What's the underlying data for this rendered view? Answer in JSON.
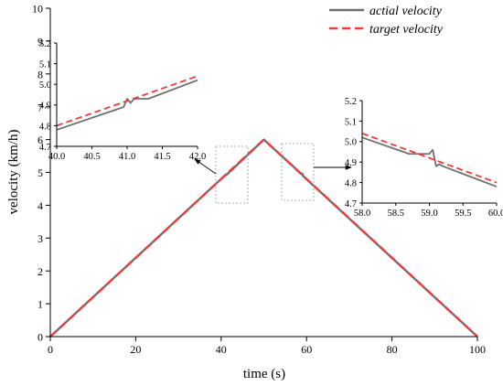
{
  "chart_data": [
    {
      "type": "line",
      "title": "",
      "xlabel": "time (s)",
      "ylabel": "velocity (km/h)",
      "xlim": [
        0,
        100
      ],
      "ylim": [
        0,
        10
      ],
      "xticks": [
        0,
        20,
        40,
        60,
        80,
        100
      ],
      "yticks": [
        0,
        1,
        2,
        3,
        4,
        5,
        6,
        7,
        8,
        9,
        10
      ],
      "grid": false,
      "legend": "top-right",
      "series": [
        {
          "name": "actial velocity",
          "color": "#707070",
          "style": "solid",
          "x": [
            0,
            41.0,
            41.1,
            41.3,
            50,
            59.0,
            59.1,
            59.2,
            100
          ],
          "y": [
            0,
            4.92,
            4.94,
            4.93,
            6.0,
            4.93,
            4.95,
            4.89,
            0
          ]
        },
        {
          "name": "target velocity",
          "color": "#ef3b3b",
          "style": "dashed",
          "x": [
            0,
            50,
            100
          ],
          "y": [
            0,
            6.0,
            0
          ]
        }
      ]
    },
    {
      "type": "line",
      "xlim": [
        40.0,
        42.0
      ],
      "ylim": [
        4.7,
        5.2
      ],
      "xticks": [
        "40.0",
        "40.5",
        "41.0",
        "41.5",
        "42.0"
      ],
      "yticks": [
        "4.7",
        "4.8",
        "4.9",
        "5.0",
        "5.1",
        "5.2"
      ],
      "series": [
        {
          "name": "actial velocity",
          "color": "#707070",
          "style": "solid",
          "x": [
            40.0,
            40.95,
            41.0,
            41.05,
            41.1,
            41.3,
            42.0
          ],
          "y": [
            4.78,
            4.89,
            4.93,
            4.91,
            4.93,
            4.93,
            5.02
          ]
        },
        {
          "name": "target velocity",
          "color": "#ef3b3b",
          "style": "dashed",
          "x": [
            40.0,
            42.0
          ],
          "y": [
            4.8,
            5.04
          ]
        }
      ]
    },
    {
      "type": "line",
      "xlim": [
        58.0,
        60.0
      ],
      "ylim": [
        4.7,
        5.2
      ],
      "xticks": [
        "58.0",
        "58.5",
        "59.0",
        "59.5",
        "60.0"
      ],
      "yticks": [
        "4.7",
        "4.8",
        "4.9",
        "5.0",
        "5.1",
        "5.2"
      ],
      "series": [
        {
          "name": "actial velocity",
          "color": "#707070",
          "style": "solid",
          "x": [
            58.0,
            58.7,
            59.0,
            59.05,
            59.1,
            59.15,
            59.2,
            60.0
          ],
          "y": [
            5.02,
            4.94,
            4.94,
            4.96,
            4.88,
            4.89,
            4.88,
            4.78
          ]
        },
        {
          "name": "target velocity",
          "color": "#ef3b3b",
          "style": "dashed",
          "x": [
            58.0,
            60.0
          ],
          "y": [
            5.04,
            4.8
          ]
        }
      ]
    }
  ]
}
